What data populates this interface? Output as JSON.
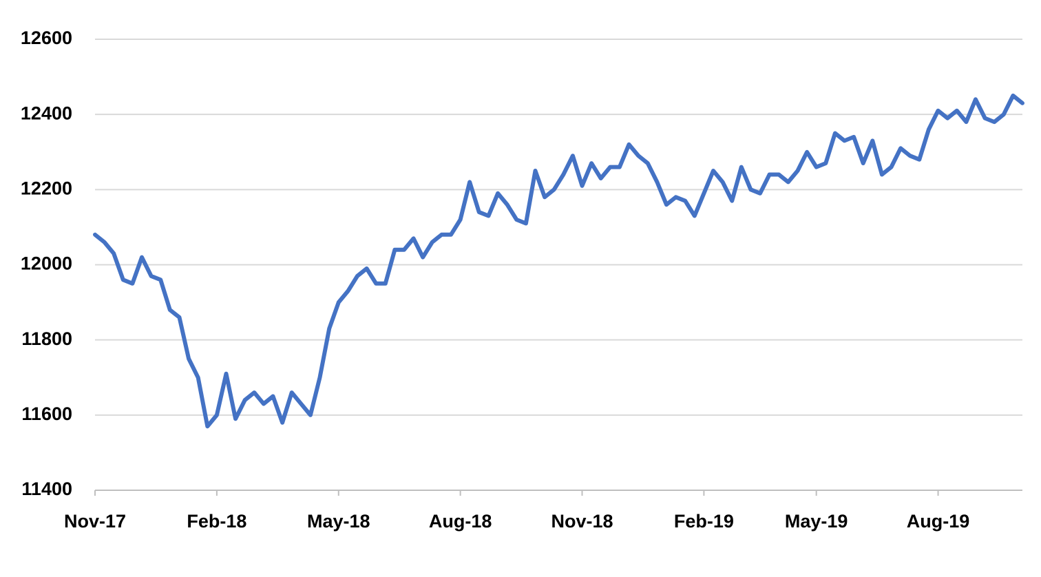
{
  "chart_data": {
    "type": "line",
    "categories": [
      "Nov-17",
      null,
      null,
      null,
      null,
      null,
      null,
      null,
      null,
      null,
      null,
      null,
      null,
      "Feb-18",
      null,
      null,
      null,
      null,
      null,
      null,
      null,
      null,
      null,
      null,
      null,
      null,
      "May-18",
      null,
      null,
      null,
      null,
      null,
      null,
      null,
      null,
      null,
      null,
      null,
      null,
      "Aug-18",
      null,
      null,
      null,
      null,
      null,
      null,
      null,
      null,
      null,
      null,
      null,
      null,
      "Nov-18",
      null,
      null,
      null,
      null,
      null,
      null,
      null,
      null,
      null,
      null,
      null,
      null,
      "Feb-19",
      null,
      null,
      null,
      null,
      null,
      null,
      null,
      null,
      null,
      null,
      null,
      "May-19",
      null,
      null,
      null,
      null,
      null,
      null,
      null,
      null,
      null,
      null,
      null,
      null,
      "Aug-19",
      null,
      null,
      null,
      null,
      null,
      null,
      null,
      null,
      null
    ],
    "values": [
      12080,
      12060,
      12030,
      11960,
      11950,
      12020,
      11970,
      11960,
      11880,
      11860,
      11750,
      11700,
      11570,
      11600,
      11710,
      11590,
      11640,
      11660,
      11630,
      11650,
      11580,
      11660,
      11630,
      11600,
      11700,
      11830,
      11900,
      11930,
      11970,
      11990,
      11950,
      11950,
      12040,
      12040,
      12070,
      12020,
      12060,
      12080,
      12080,
      12120,
      12220,
      12140,
      12130,
      12190,
      12160,
      12120,
      12110,
      12250,
      12180,
      12200,
      12240,
      12290,
      12210,
      12270,
      12230,
      12260,
      12260,
      12320,
      12290,
      12270,
      12220,
      12160,
      12180,
      12170,
      12130,
      12190,
      12250,
      12220,
      12170,
      12260,
      12200,
      12190,
      12240,
      12240,
      12220,
      12250,
      12300,
      12260,
      12270,
      12350,
      12330,
      12340,
      12270,
      12330,
      12240,
      12260,
      12310,
      12290,
      12280,
      12360,
      12410,
      12390,
      12410,
      12380,
      12440,
      12390,
      12380,
      12400,
      12450,
      12430
    ],
    "color": "#4472c4",
    "ylim": [
      11400,
      12600
    ],
    "yticks": [
      11400,
      11600,
      11800,
      12000,
      12200,
      12400,
      12600
    ],
    "grid": true
  }
}
